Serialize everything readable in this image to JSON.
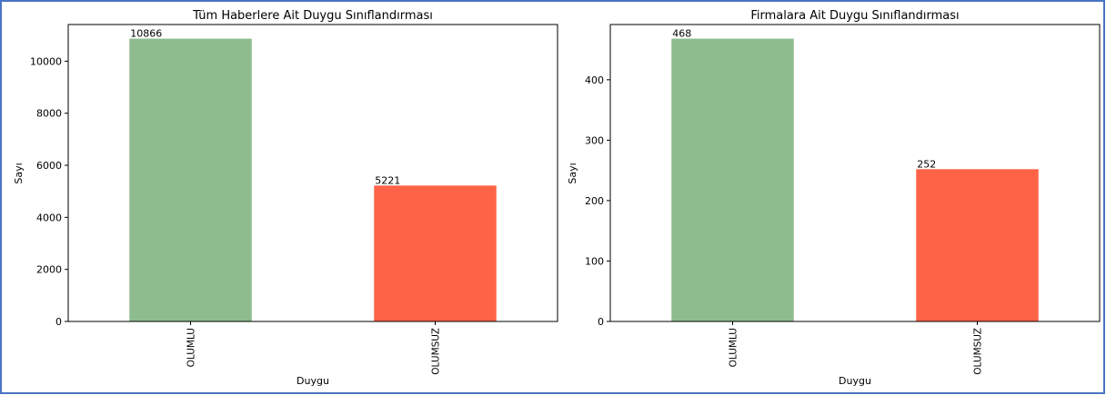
{
  "colors": {
    "border": "#4a74c4",
    "positive": "#8fbc8f",
    "negative": "#ff6347"
  },
  "chart_data": [
    {
      "type": "bar",
      "title": "Tüm Haberlere Ait Duygu Sınıflandırması",
      "xlabel": "Duygu",
      "ylabel": "Sayı",
      "categories": [
        "OLUMLU",
        "OLUMSUZ"
      ],
      "values": [
        10866,
        5221
      ],
      "value_labels": [
        "10866",
        "5221"
      ],
      "bar_colors": [
        "#8fbc8f",
        "#ff6347"
      ],
      "ylim": [
        0,
        11409
      ],
      "yticks": [
        0,
        2000,
        4000,
        6000,
        8000,
        10000
      ],
      "grid": false
    },
    {
      "type": "bar",
      "title": "Firmalara Ait Duygu Sınıflandırması",
      "xlabel": "Duygu",
      "ylabel": "Sayı",
      "categories": [
        "OLUMLU",
        "OLUMSUZ"
      ],
      "values": [
        468,
        252
      ],
      "value_labels": [
        "468",
        "252"
      ],
      "bar_colors": [
        "#8fbc8f",
        "#ff6347"
      ],
      "ylim": [
        0,
        491.4
      ],
      "yticks": [
        0,
        100,
        200,
        300,
        400
      ],
      "grid": false
    }
  ]
}
